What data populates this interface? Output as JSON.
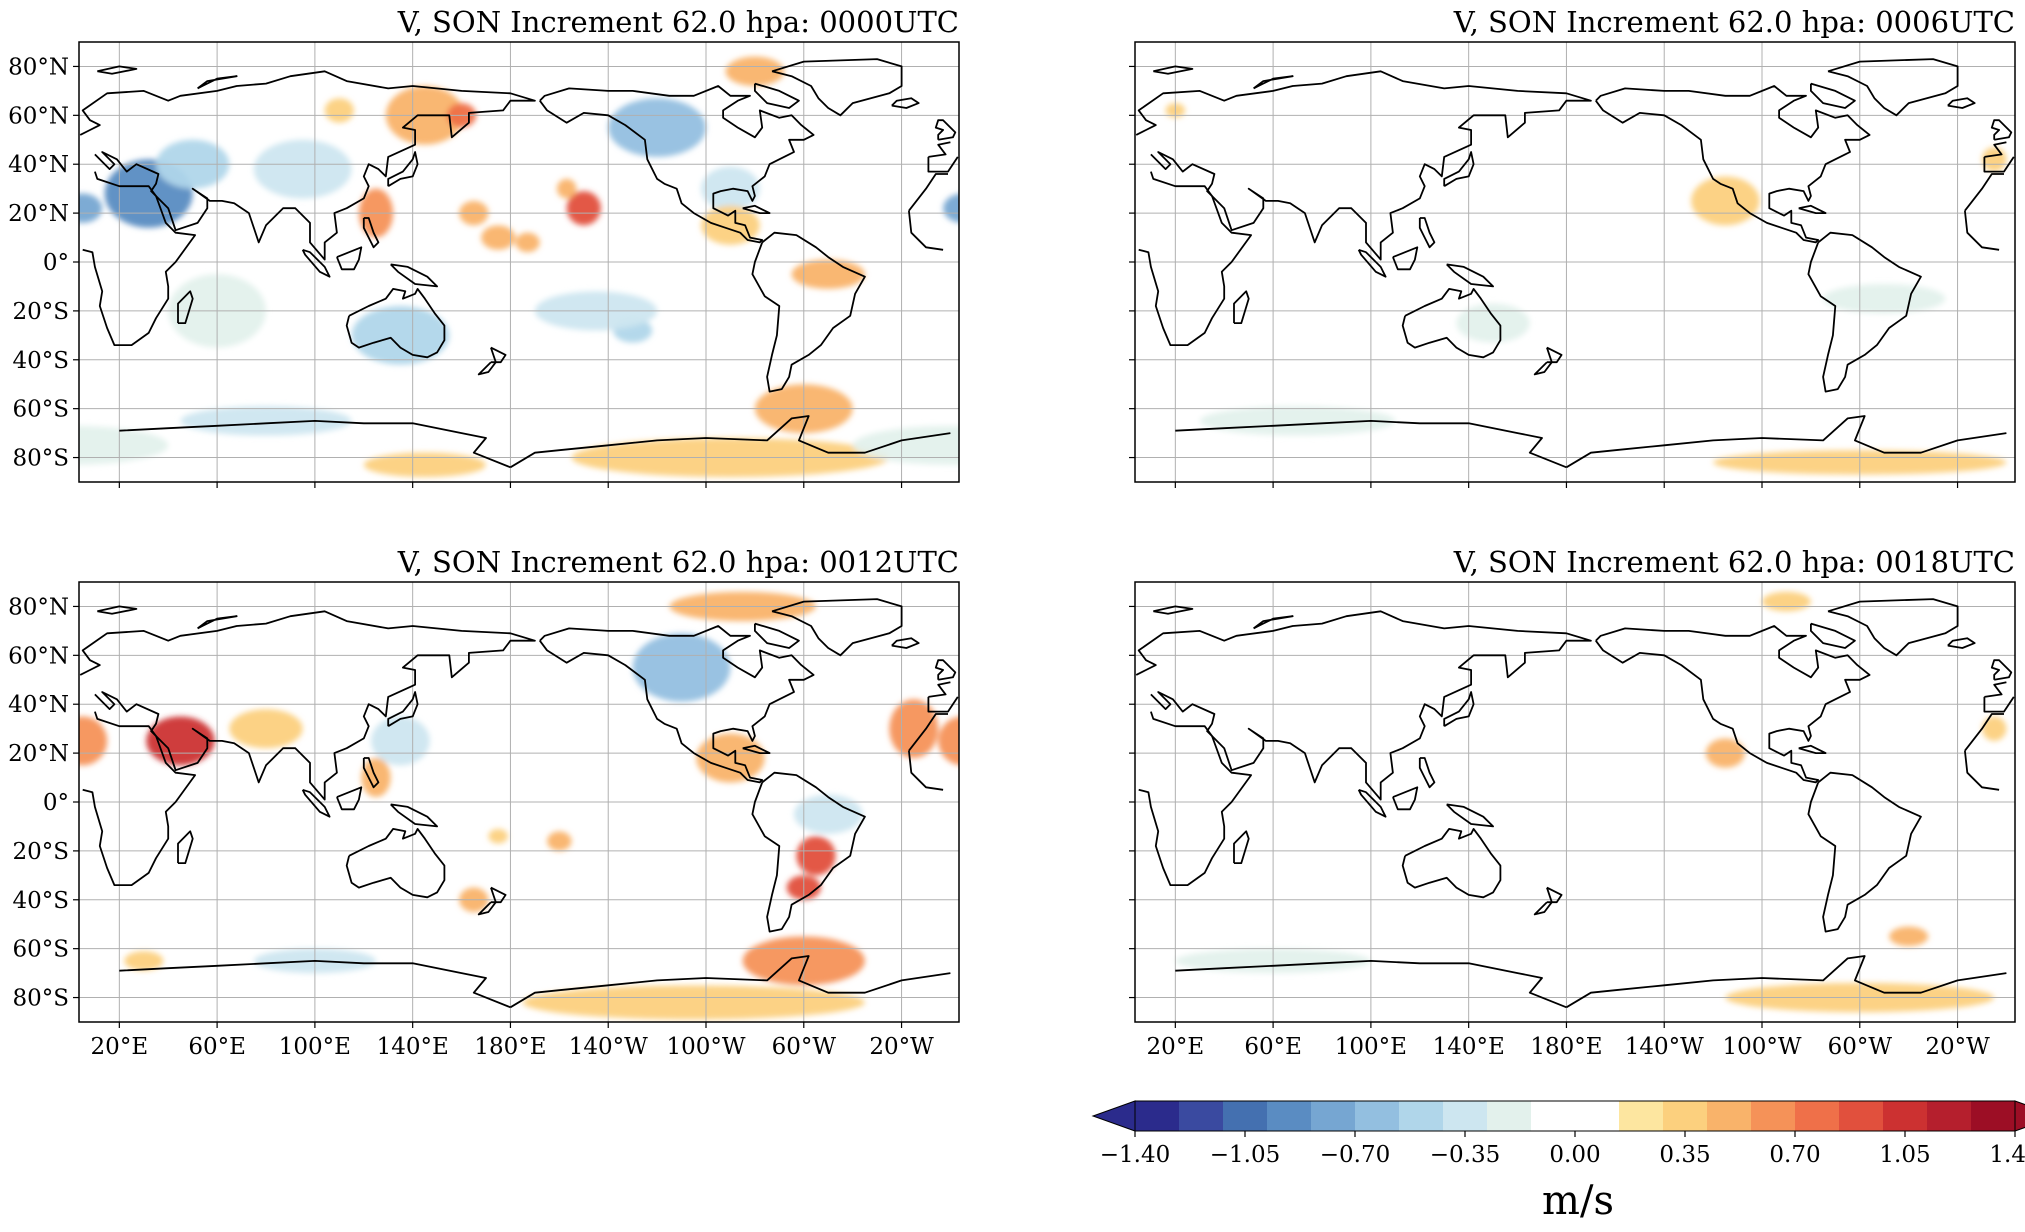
{
  "colors": {
    "land_outline": "#000000",
    "grid": "#b0b0b0",
    "cmap": [
      "#2b2b8c",
      "#3a4aa0",
      "#4470b0",
      "#5a8cc2",
      "#76a6d2",
      "#93bfe0",
      "#b0d6ea",
      "#cde6f0",
      "#e3f1ec",
      "#ffffff",
      "#ffffff",
      "#fde6a0",
      "#fcd07e",
      "#f9b36a",
      "#f59258",
      "#ef7049",
      "#e1503d",
      "#cc3131",
      "#b51f2d",
      "#9c0e25"
    ]
  },
  "chart_data": [
    {
      "type": "heatmap",
      "title": "V, SON Increment 62.0 hpa:  0000UTC",
      "variable": "V",
      "season": "SON",
      "level_hpa": 62.0,
      "time": "0000UTC",
      "xlim": [
        0,
        360
      ],
      "ylim": [
        -90,
        90
      ],
      "yticks": [
        "80°N",
        "60°N",
        "40°N",
        "20°N",
        "0°",
        "20°S",
        "40°S",
        "60°S",
        "80°S"
      ],
      "xticks": [],
      "grid": true,
      "features": [
        {
          "lon": 32,
          "lat": 28,
          "v": -0.9,
          "rx": 18,
          "ry": 14
        },
        {
          "lon": 5,
          "lat": 22,
          "v": -0.8,
          "rx": 8,
          "ry": 6
        },
        {
          "lon": 50,
          "lat": 40,
          "v": -0.5,
          "rx": 15,
          "ry": 10
        },
        {
          "lon": 95,
          "lat": 38,
          "v": -0.3,
          "rx": 20,
          "ry": 12
        },
        {
          "lon": 145,
          "lat": 60,
          "v": 0.5,
          "rx": 16,
          "ry": 12
        },
        {
          "lon": 110,
          "lat": 62,
          "v": 0.35,
          "rx": 6,
          "ry": 5
        },
        {
          "lon": 160,
          "lat": 60,
          "v": 0.8,
          "rx": 6,
          "ry": 5
        },
        {
          "lon": 125,
          "lat": 20,
          "v": 0.7,
          "rx": 7,
          "ry": 10
        },
        {
          "lon": 165,
          "lat": 20,
          "v": 0.5,
          "rx": 6,
          "ry": 5
        },
        {
          "lon": 175,
          "lat": 10,
          "v": 0.55,
          "rx": 7,
          "ry": 5
        },
        {
          "lon": 187,
          "lat": 8,
          "v": 0.5,
          "rx": 5,
          "ry": 4
        },
        {
          "lon": 210,
          "lat": 22,
          "v": 0.9,
          "rx": 7,
          "ry": 7
        },
        {
          "lon": 203,
          "lat": 30,
          "v": 0.45,
          "rx": 4,
          "ry": 4
        },
        {
          "lon": 240,
          "lat": 55,
          "v": -0.7,
          "rx": 20,
          "ry": 12
        },
        {
          "lon": 270,
          "lat": 30,
          "v": -0.3,
          "rx": 12,
          "ry": 9
        },
        {
          "lon": 280,
          "lat": 78,
          "v": 0.45,
          "rx": 12,
          "ry": 6
        },
        {
          "lon": 270,
          "lat": 15,
          "v": 0.4,
          "rx": 12,
          "ry": 8
        },
        {
          "lon": 310,
          "lat": -5,
          "v": 0.5,
          "rx": 15,
          "ry": 6
        },
        {
          "lon": 300,
          "lat": -60,
          "v": 0.45,
          "rx": 20,
          "ry": 10
        },
        {
          "lon": 270,
          "lat": -80,
          "v": 0.4,
          "rx": 65,
          "ry": 8
        },
        {
          "lon": 145,
          "lat": -83,
          "v": 0.35,
          "rx": 25,
          "ry": 5
        },
        {
          "lon": 135,
          "lat": -30,
          "v": -0.45,
          "rx": 20,
          "ry": 12
        },
        {
          "lon": 230,
          "lat": -28,
          "v": -0.5,
          "rx": 8,
          "ry": 5
        },
        {
          "lon": 215,
          "lat": -20,
          "v": -0.3,
          "rx": 25,
          "ry": 8
        },
        {
          "lon": 80,
          "lat": -65,
          "v": -0.35,
          "rx": 35,
          "ry": 6
        },
        {
          "lon": 0,
          "lat": -75,
          "v": -0.2,
          "rx": 40,
          "ry": 8
        },
        {
          "lon": 60,
          "lat": -20,
          "v": -0.15,
          "rx": 20,
          "ry": 15
        }
      ]
    },
    {
      "type": "heatmap",
      "title": "V, SON Increment 62.0 hpa:  0006UTC",
      "variable": "V",
      "season": "SON",
      "level_hpa": 62.0,
      "time": "0006UTC",
      "xlim": [
        0,
        360
      ],
      "ylim": [
        -90,
        90
      ],
      "yticks": [],
      "xticks": [],
      "grid": true,
      "features": [
        {
          "lon": 245,
          "lat": 25,
          "v": 0.4,
          "rx": 14,
          "ry": 10
        },
        {
          "lon": 310,
          "lat": -15,
          "v": -0.2,
          "rx": 25,
          "ry": 6
        },
        {
          "lon": 70,
          "lat": -65,
          "v": -0.25,
          "rx": 40,
          "ry": 6
        },
        {
          "lon": 300,
          "lat": -82,
          "v": 0.35,
          "rx": 60,
          "ry": 5
        },
        {
          "lon": 150,
          "lat": -25,
          "v": -0.2,
          "rx": 15,
          "ry": 8
        },
        {
          "lon": 355,
          "lat": 42,
          "v": 0.4,
          "rx": 5,
          "ry": 5
        },
        {
          "lon": 20,
          "lat": 62,
          "v": 0.4,
          "rx": 4,
          "ry": 3
        }
      ]
    },
    {
      "type": "heatmap",
      "title": "V, SON Increment 62.0 hpa:  0012UTC",
      "variable": "V",
      "season": "SON",
      "level_hpa": 62.0,
      "time": "0012UTC",
      "xlim": [
        0,
        360
      ],
      "ylim": [
        -90,
        90
      ],
      "yticks": [
        "80°N",
        "60°N",
        "40°N",
        "20°N",
        "0°",
        "20°S",
        "40°S",
        "60°S",
        "80°S"
      ],
      "xticks": [
        "20°E",
        "60°E",
        "100°E",
        "140°E",
        "180°E",
        "140°W",
        "100°W",
        "60°W",
        "20°W"
      ],
      "grid": true,
      "features": [
        {
          "lon": 45,
          "lat": 25,
          "v": 1.1,
          "rx": 14,
          "ry": 10
        },
        {
          "lon": 5,
          "lat": 25,
          "v": 0.7,
          "rx": 10,
          "ry": 10
        },
        {
          "lon": 80,
          "lat": 30,
          "v": 0.4,
          "rx": 15,
          "ry": 8
        },
        {
          "lon": 250,
          "lat": 55,
          "v": -0.6,
          "rx": 20,
          "ry": 14
        },
        {
          "lon": 275,
          "lat": 80,
          "v": 0.45,
          "rx": 30,
          "ry": 6
        },
        {
          "lon": 270,
          "lat": 18,
          "v": 0.45,
          "rx": 14,
          "ry": 10
        },
        {
          "lon": 305,
          "lat": -22,
          "v": 0.9,
          "rx": 8,
          "ry": 8
        },
        {
          "lon": 300,
          "lat": -35,
          "v": 0.95,
          "rx": 7,
          "ry": 5
        },
        {
          "lon": 310,
          "lat": -5,
          "v": -0.35,
          "rx": 14,
          "ry": 8
        },
        {
          "lon": 300,
          "lat": -65,
          "v": 0.7,
          "rx": 25,
          "ry": 10
        },
        {
          "lon": 255,
          "lat": -82,
          "v": 0.4,
          "rx": 70,
          "ry": 7
        },
        {
          "lon": 345,
          "lat": 30,
          "v": 0.6,
          "rx": 10,
          "ry": 12
        },
        {
          "lon": 165,
          "lat": -40,
          "v": 0.45,
          "rx": 6,
          "ry": 5
        },
        {
          "lon": 125,
          "lat": 10,
          "v": 0.55,
          "rx": 6,
          "ry": 8
        },
        {
          "lon": 100,
          "lat": -65,
          "v": -0.35,
          "rx": 25,
          "ry": 5
        },
        {
          "lon": 30,
          "lat": -65,
          "v": 0.4,
          "rx": 8,
          "ry": 4
        },
        {
          "lon": 200,
          "lat": -16,
          "v": 0.45,
          "rx": 5,
          "ry": 4
        },
        {
          "lon": 175,
          "lat": -14,
          "v": 0.35,
          "rx": 4,
          "ry": 3
        },
        {
          "lon": 135,
          "lat": 25,
          "v": -0.3,
          "rx": 12,
          "ry": 10
        }
      ]
    },
    {
      "type": "heatmap",
      "title": "V, SON Increment 62.0 hpa:  0018UTC",
      "variable": "V",
      "season": "SON",
      "level_hpa": 62.0,
      "time": "0018UTC",
      "xlim": [
        0,
        360
      ],
      "ylim": [
        -90,
        90
      ],
      "yticks": [],
      "xticks": [
        "20°E",
        "60°E",
        "100°E",
        "140°E",
        "180°E",
        "140°W",
        "100°W",
        "60°W",
        "20°W"
      ],
      "grid": true,
      "features": [
        {
          "lon": 245,
          "lat": 20,
          "v": 0.45,
          "rx": 8,
          "ry": 6
        },
        {
          "lon": 300,
          "lat": -80,
          "v": 0.4,
          "rx": 55,
          "ry": 6
        },
        {
          "lon": 320,
          "lat": -55,
          "v": 0.45,
          "rx": 8,
          "ry": 4
        },
        {
          "lon": 60,
          "lat": -65,
          "v": -0.25,
          "rx": 40,
          "ry": 5
        },
        {
          "lon": 270,
          "lat": 82,
          "v": 0.35,
          "rx": 10,
          "ry": 4
        },
        {
          "lon": 355,
          "lat": 30,
          "v": 0.35,
          "rx": 5,
          "ry": 5
        }
      ]
    }
  ],
  "colorbar": {
    "ticks": [
      "−1.40",
      "−1.05",
      "−0.70",
      "−0.35",
      "0.00",
      "0.35",
      "0.70",
      "1.05",
      "1.40"
    ],
    "unit": "m/s",
    "range": [
      -1.4,
      1.4
    ],
    "extend": "both"
  }
}
